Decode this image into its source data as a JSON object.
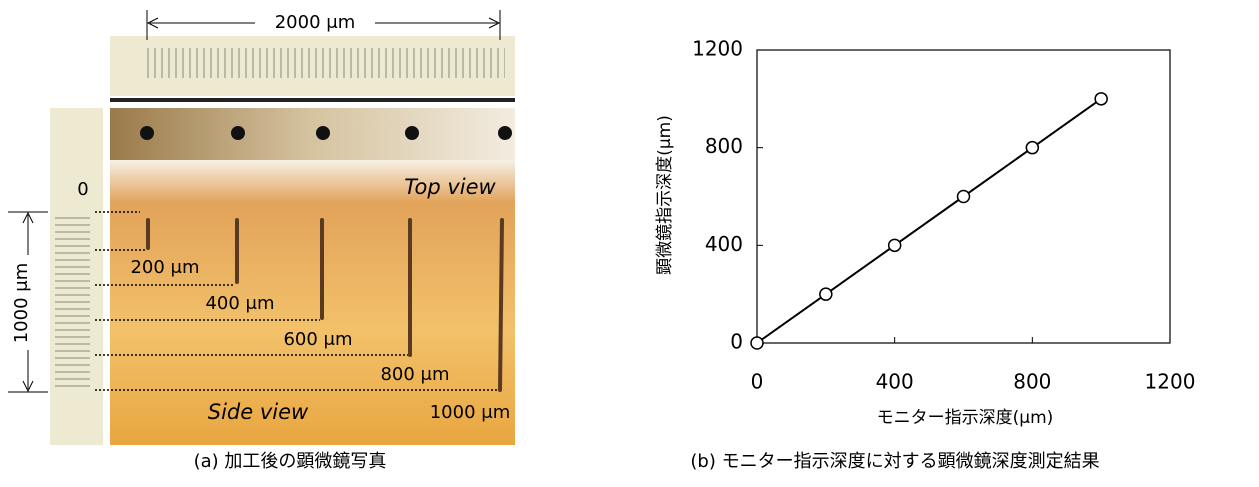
{
  "photo": {
    "scale_top": "2000 μm",
    "scale_left": "1000 μm",
    "zero": "0",
    "depths": [
      "200 μm",
      "400 μm",
      "600 μm",
      "800 μm",
      "1000 μm"
    ],
    "top_view": "Top view",
    "side_view": "Side view",
    "caption": "(a) 加工後の顕微鏡写真"
  },
  "chart_data": {
    "type": "line",
    "caption": "(b) モニター指示深度に対する顕微鏡深度測定結果",
    "x_label": "モニター指示深度(μm)",
    "y_label": "顕微鏡指示深度(μm)",
    "x": [
      0,
      200,
      400,
      600,
      800,
      1000
    ],
    "values": [
      0,
      200,
      400,
      600,
      800,
      1000
    ],
    "color": "#000000",
    "xlim": [
      0,
      1200
    ],
    "xticks": [
      0,
      400,
      800,
      1200
    ],
    "ylim": [
      0,
      1200
    ],
    "yticks": [
      0,
      400,
      800,
      1200
    ]
  }
}
